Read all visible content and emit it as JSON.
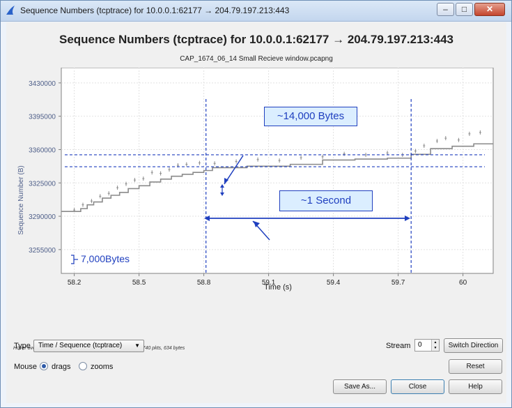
{
  "window": {
    "title": "Sequence Numbers (tcptrace) for 10.0.0.1:62177 → 204.79.197.213:443"
  },
  "heading": "Sequence Numbers (tcptrace) for 10.0.0.1:62177 → 204.79.197.213:443",
  "subheading": "CAP_1674_06_14 Small Recieve window.pcapng",
  "hint": "Hover over the graph for details. → 5351 pkts, 7664 kB ← 4740 pkts, 634 bytes",
  "controls": {
    "type_label": "Type",
    "type_value": "Time / Sequence (tcptrace)",
    "stream_label": "Stream",
    "stream_value": "0",
    "switch_direction": "Switch Direction",
    "mouse_label": "Mouse",
    "drags_label": "drags",
    "zooms_label": "zooms",
    "reset": "Reset",
    "save_as": "Save As...",
    "close": "Close",
    "help": "Help"
  },
  "annotations": {
    "bytes_14000": "~14,000 Bytes",
    "one_second": "~1 Second",
    "bytes_7000": "7,000Bytes"
  },
  "chart_data": {
    "type": "line",
    "title": "Sequence Numbers (tcptrace) for 10.0.0.1:62177 → 204.79.197.213:443",
    "subtitle": "CAP_1674_06_14 Small Recieve window.pcapng",
    "xlabel": "Time (s)",
    "ylabel": "Sequence Number (B)",
    "xlim": [
      58.14,
      60.14
    ],
    "ylim": [
      3230000,
      3446000
    ],
    "xticks": [
      58.2,
      58.5,
      58.8,
      59.1,
      59.4,
      59.7,
      60
    ],
    "yticks": [
      3255000,
      3290000,
      3325000,
      3360000,
      3395000,
      3430000
    ],
    "grid": true,
    "series": [
      {
        "kind": "step",
        "color": "#8a8a8a",
        "x": [
          58.14,
          58.23,
          58.26,
          58.29,
          58.33,
          58.37,
          58.41,
          58.45,
          58.5,
          58.55,
          58.6,
          58.65,
          58.7,
          58.75,
          58.8,
          58.84,
          59.0,
          59.2,
          59.35,
          59.5,
          59.65,
          59.76,
          59.85,
          59.95,
          60.05,
          60.14
        ],
        "y": [
          3295000,
          3298000,
          3302000,
          3305000,
          3309000,
          3312000,
          3315000,
          3319000,
          3322000,
          3326000,
          3329000,
          3332000,
          3334000,
          3336000,
          3338000,
          3341000,
          3342500,
          3344500,
          3349000,
          3350000,
          3351000,
          3355000,
          3361000,
          3363500,
          3366000,
          3366000
        ]
      },
      {
        "kind": "marks",
        "color": "#8a8a8a",
        "x": [
          58.2,
          58.24,
          58.28,
          58.32,
          58.36,
          58.4,
          58.44,
          58.48,
          58.52,
          58.56,
          58.6,
          58.64,
          58.68,
          58.72,
          58.78,
          58.85,
          58.95,
          59.05,
          59.15,
          59.25,
          59.35,
          59.45,
          59.55,
          59.65,
          59.72,
          59.78,
          59.82,
          59.88,
          59.92,
          59.98,
          60.03,
          60.08
        ],
        "y": [
          3296500,
          3302000,
          3306000,
          3311000,
          3314000,
          3320000,
          3324000,
          3328000,
          3329500,
          3336000,
          3335000,
          3339000,
          3343500,
          3344500,
          3346000,
          3345500,
          3347500,
          3349500,
          3348500,
          3351500,
          3352500,
          3355500,
          3354500,
          3356500,
          3354500,
          3358500,
          3364000,
          3369000,
          3372000,
          3370000,
          3376500,
          3378000
        ]
      }
    ],
    "reference_lines": {
      "vertical_x": [
        58.81,
        59.76
      ],
      "horizontal_y": [
        3354500,
        3342000
      ]
    }
  }
}
